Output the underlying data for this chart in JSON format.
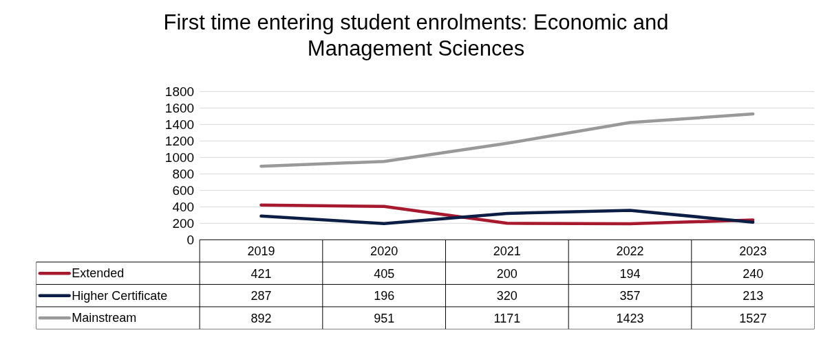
{
  "chart_data": {
    "type": "line",
    "title": "First time entering student enrolments: Economic and Management Sciences",
    "categories": [
      "2019",
      "2020",
      "2021",
      "2022",
      "2023"
    ],
    "series": [
      {
        "name": "Extended",
        "color": "#a6192e",
        "values": [
          421,
          405,
          200,
          194,
          240
        ]
      },
      {
        "name": "Higher Certificate",
        "color": "#0c1e45",
        "values": [
          287,
          196,
          320,
          357,
          213
        ]
      },
      {
        "name": "Mainstream",
        "color": "#999999",
        "values": [
          892,
          951,
          1171,
          1423,
          1527
        ]
      }
    ],
    "ylim": [
      0,
      1800
    ],
    "yticks": [
      0,
      200,
      400,
      600,
      800,
      1000,
      1200,
      1400,
      1600,
      1800
    ],
    "grid": "y",
    "legend": "bottom",
    "data_labels": true,
    "marker": "none",
    "line_style": "solid"
  }
}
